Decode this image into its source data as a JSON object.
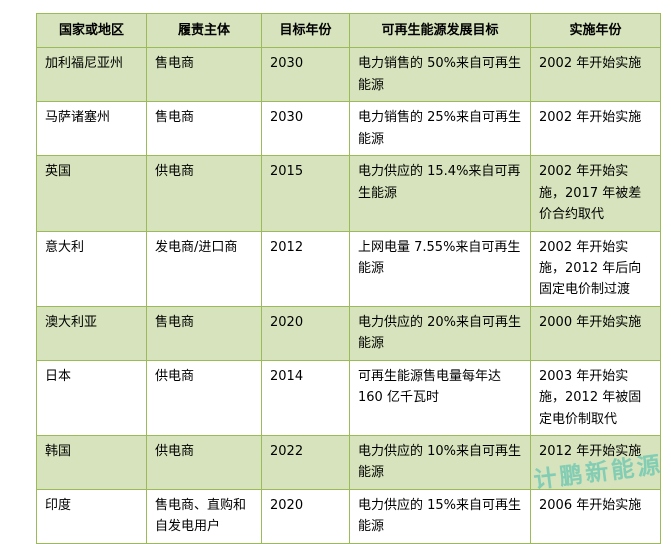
{
  "chart_data": {
    "type": "table",
    "title": "",
    "columns": [
      "国家或地区",
      "履责主体",
      "目标年份",
      "可再生能源发展目标",
      "实施年份"
    ],
    "rows": [
      [
        "加利福尼亚州",
        "售电商",
        "2030",
        "电力销售的 50%来自可再生能源",
        "2002 年开始实施"
      ],
      [
        "马萨诸塞州",
        "售电商",
        "2030",
        "电力销售的 25%来自可再生能源",
        "2002 年开始实施"
      ],
      [
        "英国",
        "供电商",
        "2015",
        "电力供应的 15.4%来自可再生能源",
        "2002 年开始实施，2017 年被差价合约取代"
      ],
      [
        "意大利",
        "发电商/进口商",
        "2012",
        "上网电量 7.55%来自可再生能源",
        "2002 年开始实施，2012 年后向固定电价制过渡"
      ],
      [
        "澳大利亚",
        "售电商",
        "2020",
        "电力供应的 20%来自可再生能源",
        "2000 年开始实施"
      ],
      [
        "日本",
        "供电商",
        "2014",
        "可再生能源售电量每年达 160 亿千瓦时",
        "2003 年开始实施，2012 年被固定电价制取代"
      ],
      [
        "韩国",
        "供电商",
        "2022",
        "电力供应的 10%来自可再生能源",
        "2012 年开始实施"
      ],
      [
        "印度",
        "售电商、直购和自发电用户",
        "2020",
        "电力供应的 15%来自可再生能源",
        "2006 年开始实施"
      ]
    ],
    "layout": {
      "grid": true,
      "header_background": "#d6e3bc",
      "alt_row_background": "#d6e3bc",
      "row_background": "#ffffff",
      "border_color": "#9bbb59"
    }
  },
  "watermark": {
    "text": "计鹏新能源",
    "color": "#67c6b2"
  },
  "row_height_classes": [
    "mid",
    "mid",
    "tall",
    "tall",
    "mid",
    "tall",
    "mid",
    "mid"
  ]
}
